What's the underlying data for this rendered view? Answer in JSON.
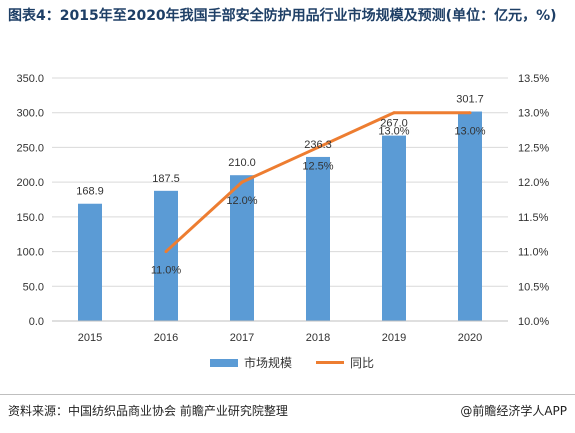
{
  "title": "图表4：2015年至2020年我国手部安全防护用品行业市场规模及预测(单位：亿元，%)",
  "chart_data": {
    "type": "bar",
    "categories": [
      "2015",
      "2016",
      "2017",
      "2018",
      "2019",
      "2020"
    ],
    "series": [
      {
        "name": "市场规模",
        "type": "bar",
        "axis": "left",
        "color": "#5b9bd5",
        "values": [
          168.9,
          187.5,
          210.0,
          236.3,
          267.0,
          301.7
        ],
        "labels": [
          "168.9",
          "187.5",
          "210.0",
          "236.3",
          "267.0",
          "301.7"
        ]
      },
      {
        "name": "同比",
        "type": "line",
        "axis": "right",
        "color": "#ed7d31",
        "values": [
          null,
          11.0,
          12.0,
          12.5,
          13.0,
          13.0
        ],
        "labels": [
          "",
          "11.0%",
          "12.0%",
          "12.5%",
          "13.0%",
          "13.0%"
        ]
      }
    ],
    "y_left": {
      "min": 0,
      "max": 350,
      "step": 50,
      "ticks": [
        "0.0",
        "50.0",
        "100.0",
        "150.0",
        "200.0",
        "250.0",
        "300.0",
        "350.0"
      ]
    },
    "y_right": {
      "min": 10.0,
      "max": 13.5,
      "step": 0.5,
      "ticks": [
        "10.0%",
        "10.5%",
        "11.0%",
        "11.5%",
        "12.0%",
        "12.5%",
        "13.0%",
        "13.5%"
      ]
    },
    "grid": true,
    "legend": "bottom"
  },
  "footer": {
    "source": "资料来源：中国纺织品商业协会 前瞻产业研究院整理",
    "credit": "@前瞻经济学人APP"
  }
}
